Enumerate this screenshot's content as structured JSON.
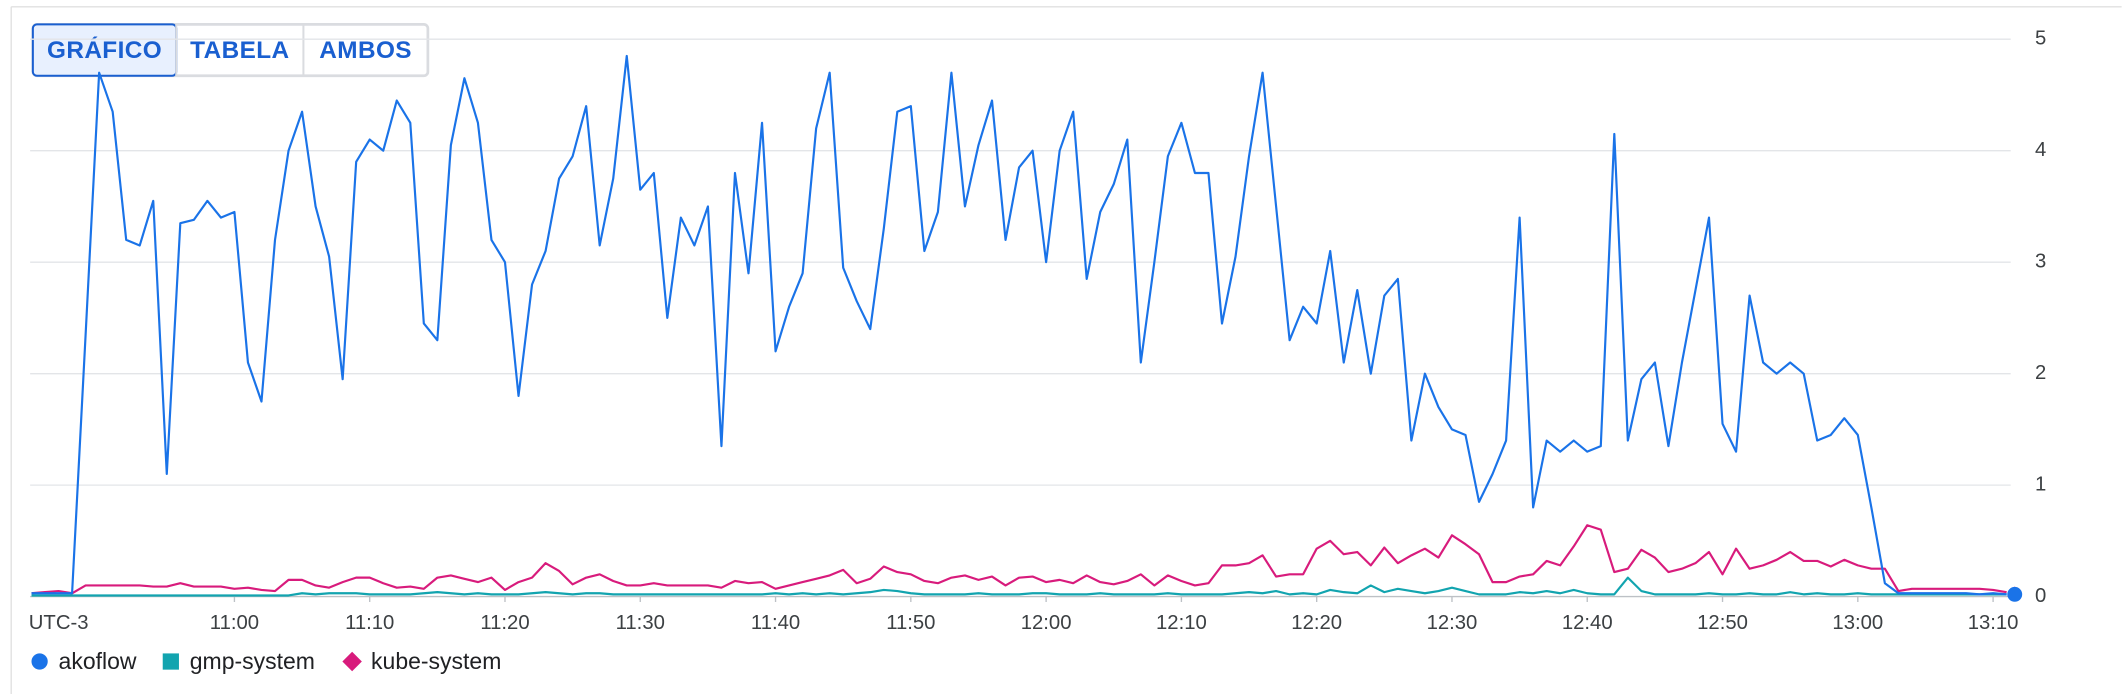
{
  "tabs": [
    "GRÁFICO",
    "TABELA",
    "AMBOS"
  ],
  "selected_tab": 0,
  "chart_data": {
    "type": "line",
    "x_label": "UTC-3",
    "x": [
      645,
      646,
      647,
      648,
      649,
      650,
      651,
      652,
      653,
      654,
      655,
      656,
      657,
      658,
      659,
      660,
      661,
      662,
      663,
      664,
      665,
      666,
      667,
      668,
      669,
      670,
      671,
      672,
      673,
      674,
      675,
      676,
      677,
      678,
      679,
      680,
      681,
      682,
      683,
      684,
      685,
      686,
      687,
      688,
      689,
      690,
      691,
      692,
      693,
      694,
      695,
      696,
      697,
      698,
      699,
      700,
      701,
      702,
      703,
      704,
      705,
      706,
      707,
      708,
      709,
      710,
      711,
      712,
      713,
      714,
      715,
      716,
      717,
      718,
      719,
      720,
      721,
      722,
      723,
      724,
      725,
      726,
      727,
      728,
      729,
      730,
      731,
      732,
      733,
      734,
      735,
      736,
      737,
      738,
      739,
      740,
      741,
      742,
      743,
      744,
      745,
      746,
      747,
      748,
      749,
      750,
      751,
      752,
      753,
      754,
      755,
      756,
      757,
      758,
      759,
      760,
      761,
      762,
      763,
      764,
      765,
      766,
      767,
      768,
      769,
      770,
      771,
      772,
      773,
      774,
      775,
      776,
      777,
      778,
      779,
      780,
      781,
      782,
      783,
      784,
      785,
      786,
      787,
      788,
      789,
      790,
      791
    ],
    "xlim": [
      645,
      791
    ],
    "xticks": [
      {
        "value": 660,
        "label": "11:00"
      },
      {
        "value": 670,
        "label": "11:10"
      },
      {
        "value": 680,
        "label": "11:20"
      },
      {
        "value": 690,
        "label": "11:30"
      },
      {
        "value": 700,
        "label": "11:40"
      },
      {
        "value": 710,
        "label": "11:50"
      },
      {
        "value": 720,
        "label": "12:00"
      },
      {
        "value": 730,
        "label": "12:10"
      },
      {
        "value": 740,
        "label": "12:20"
      },
      {
        "value": 750,
        "label": "12:30"
      },
      {
        "value": 760,
        "label": "12:40"
      },
      {
        "value": 770,
        "label": "12:50"
      },
      {
        "value": 780,
        "label": "13:00"
      },
      {
        "value": 790,
        "label": "13:10"
      }
    ],
    "ylim": [
      0,
      5
    ],
    "yticks": [
      0,
      1,
      2,
      3,
      4,
      5
    ],
    "grid": true,
    "legend": "bottom-left",
    "series": [
      {
        "name": "akoflow",
        "color": "#1a73e8",
        "marker": "circle",
        "values": [
          0.03,
          0.03,
          0.03,
          0.03,
          2.35,
          4.7,
          4.35,
          3.2,
          3.15,
          3.55,
          1.1,
          3.35,
          3.38,
          3.55,
          3.4,
          3.45,
          2.1,
          1.75,
          3.2,
          4.0,
          4.35,
          3.5,
          3.05,
          1.95,
          3.9,
          4.1,
          4.0,
          4.45,
          4.25,
          2.45,
          2.3,
          4.05,
          4.65,
          4.25,
          3.2,
          3.0,
          1.8,
          2.8,
          3.1,
          3.75,
          3.95,
          4.4,
          3.15,
          3.75,
          4.85,
          3.65,
          3.8,
          2.5,
          3.4,
          3.15,
          3.5,
          1.35,
          3.8,
          2.9,
          4.25,
          2.2,
          2.6,
          2.9,
          4.2,
          4.7,
          2.95,
          2.65,
          2.4,
          3.3,
          4.35,
          4.4,
          3.1,
          3.45,
          4.7,
          3.5,
          4.05,
          4.45,
          3.2,
          3.85,
          4.0,
          3.0,
          4.0,
          4.35,
          2.85,
          3.45,
          3.7,
          4.1,
          2.1,
          3.0,
          3.95,
          4.25,
          3.8,
          3.8,
          2.45,
          3.05,
          3.95,
          4.7,
          3.5,
          2.3,
          2.6,
          2.45,
          3.1,
          2.1,
          2.75,
          2.0,
          2.7,
          2.85,
          1.4,
          2.0,
          1.7,
          1.5,
          1.45,
          0.85,
          1.1,
          1.4,
          3.4,
          0.8,
          1.4,
          1.3,
          1.4,
          1.3,
          1.35,
          4.15,
          1.4,
          1.95,
          2.1,
          1.35,
          2.1,
          2.75,
          3.4,
          1.55,
          1.3,
          2.7,
          2.1,
          2.0,
          2.1,
          2.0,
          1.4,
          1.45,
          1.6,
          1.45,
          0.8,
          0.12,
          0.03,
          0.03,
          0.03,
          0.03,
          0.03,
          0.03,
          0.02,
          0.03,
          0.02
        ]
      },
      {
        "name": "gmp-system",
        "color": "#12a4af",
        "marker": "square",
        "values": [
          0.01,
          0.01,
          0.01,
          0.01,
          0.01,
          0.01,
          0.01,
          0.01,
          0.01,
          0.01,
          0.01,
          0.01,
          0.01,
          0.01,
          0.01,
          0.01,
          0.01,
          0.01,
          0.01,
          0.01,
          0.03,
          0.02,
          0.03,
          0.03,
          0.03,
          0.02,
          0.02,
          0.02,
          0.02,
          0.03,
          0.04,
          0.03,
          0.02,
          0.03,
          0.02,
          0.02,
          0.02,
          0.03,
          0.04,
          0.03,
          0.02,
          0.03,
          0.03,
          0.02,
          0.02,
          0.02,
          0.02,
          0.02,
          0.02,
          0.02,
          0.02,
          0.02,
          0.02,
          0.02,
          0.02,
          0.03,
          0.02,
          0.03,
          0.02,
          0.03,
          0.02,
          0.03,
          0.04,
          0.06,
          0.05,
          0.03,
          0.02,
          0.02,
          0.02,
          0.02,
          0.03,
          0.02,
          0.02,
          0.02,
          0.03,
          0.03,
          0.02,
          0.02,
          0.02,
          0.03,
          0.02,
          0.02,
          0.02,
          0.02,
          0.03,
          0.02,
          0.02,
          0.02,
          0.02,
          0.03,
          0.04,
          0.03,
          0.05,
          0.02,
          0.03,
          0.02,
          0.06,
          0.04,
          0.03,
          0.1,
          0.04,
          0.07,
          0.05,
          0.03,
          0.05,
          0.08,
          0.05,
          0.02,
          0.02,
          0.02,
          0.04,
          0.03,
          0.05,
          0.03,
          0.06,
          0.03,
          0.02,
          0.02,
          0.17,
          0.05,
          0.02,
          0.02,
          0.02,
          0.02,
          0.03,
          0.02,
          0.02,
          0.03,
          0.02,
          0.02,
          0.04,
          0.02,
          0.03,
          0.02,
          0.02,
          0.03,
          0.02,
          0.02,
          0.02,
          0.02,
          0.02,
          0.02,
          0.02,
          0.02,
          0.02,
          0.02,
          0.02
        ]
      },
      {
        "name": "kube-system",
        "color": "#d81b7c",
        "marker": "diamond",
        "values": [
          0.03,
          0.04,
          0.05,
          0.03,
          0.1,
          0.1,
          0.1,
          0.1,
          0.1,
          0.09,
          0.09,
          0.12,
          0.09,
          0.09,
          0.09,
          0.07,
          0.08,
          0.06,
          0.05,
          0.15,
          0.15,
          0.1,
          0.08,
          0.13,
          0.17,
          0.17,
          0.12,
          0.08,
          0.09,
          0.07,
          0.17,
          0.19,
          0.16,
          0.13,
          0.17,
          0.06,
          0.13,
          0.17,
          0.3,
          0.23,
          0.11,
          0.17,
          0.2,
          0.14,
          0.1,
          0.1,
          0.12,
          0.1,
          0.1,
          0.1,
          0.1,
          0.08,
          0.14,
          0.12,
          0.13,
          0.07,
          0.1,
          0.13,
          0.16,
          0.19,
          0.24,
          0.12,
          0.16,
          0.27,
          0.22,
          0.2,
          0.14,
          0.12,
          0.17,
          0.19,
          0.15,
          0.18,
          0.1,
          0.17,
          0.18,
          0.13,
          0.15,
          0.12,
          0.19,
          0.13,
          0.11,
          0.14,
          0.2,
          0.1,
          0.19,
          0.14,
          0.1,
          0.12,
          0.28,
          0.28,
          0.3,
          0.37,
          0.18,
          0.2,
          0.2,
          0.43,
          0.5,
          0.38,
          0.4,
          0.28,
          0.44,
          0.3,
          0.37,
          0.43,
          0.35,
          0.55,
          0.47,
          0.38,
          0.13,
          0.13,
          0.18,
          0.2,
          0.32,
          0.28,
          0.45,
          0.64,
          0.6,
          0.22,
          0.25,
          0.42,
          0.35,
          0.22,
          0.25,
          0.3,
          0.4,
          0.2,
          0.43,
          0.25,
          0.28,
          0.33,
          0.4,
          0.32,
          0.32,
          0.27,
          0.33,
          0.28,
          0.25,
          0.25,
          0.05,
          0.07,
          0.07,
          0.07,
          0.07,
          0.07,
          0.07,
          0.06,
          0.04
        ]
      }
    ]
  }
}
